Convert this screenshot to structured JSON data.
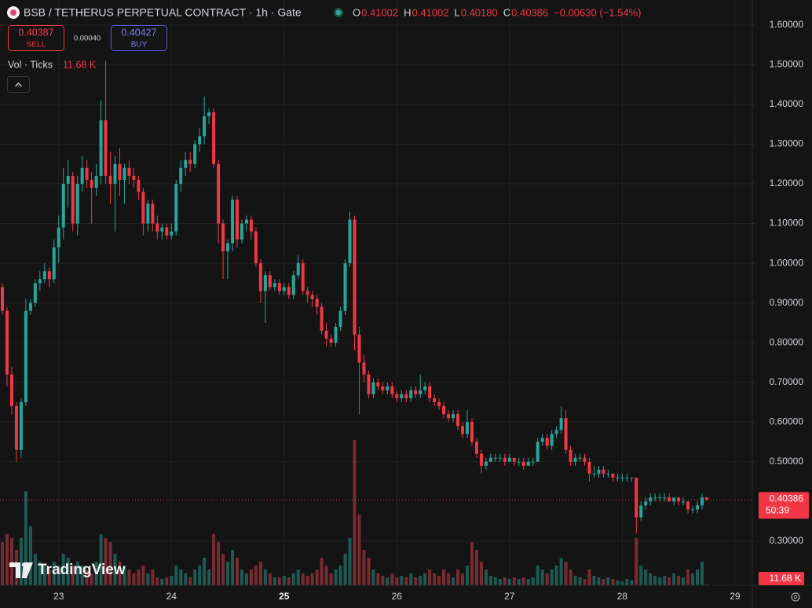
{
  "toolbar": {
    "symbol": "BSB / TETHERUS PERPETUAL CONTRACT · 1h · Gate",
    "readout": [
      {
        "label": "O",
        "value": "0.41002"
      },
      {
        "label": "H",
        "value": "0.41002"
      },
      {
        "label": "L",
        "value": "0.40180"
      },
      {
        "label": "C",
        "value": "0.40386"
      }
    ],
    "change": "−0.00630 (−1.54%)",
    "sell_price": "0.40387",
    "sell_label": "SELL",
    "spread": "0.00040",
    "buy_price": "0.40427",
    "buy_label": "BUY",
    "indicator": "Vol · Ticks",
    "volume_label": "11.68 K",
    "countdown": "50:39",
    "logo": "TradingView"
  },
  "chart_data": {
    "type": "candlestick",
    "title": "BSB / TETHERUS PERPETUAL CONTRACT · 1h · Gate",
    "up_color": "#26a69a",
    "down_color": "#f23645",
    "volume_up_color": "#1d5a54",
    "volume_down_color": "#7a2b31",
    "grid": true,
    "ylim": [
      0.189,
      1.663
    ],
    "yticks": [
      {
        "value": 1.6,
        "label": "1.60000"
      },
      {
        "value": 1.5,
        "label": "1.50000"
      },
      {
        "value": 1.4,
        "label": "1.40000"
      },
      {
        "value": 1.3,
        "label": "1.30000"
      },
      {
        "value": 1.2,
        "label": "1.20000"
      },
      {
        "value": 1.1,
        "label": "1.10000"
      },
      {
        "value": 1.0,
        "label": "1.00000"
      },
      {
        "value": 0.9,
        "label": "0.90000"
      },
      {
        "value": 0.8,
        "label": "0.80000"
      },
      {
        "value": 0.7,
        "label": "0.70000"
      },
      {
        "value": 0.6,
        "label": "0.60000"
      },
      {
        "value": 0.5,
        "label": "0.50000"
      },
      {
        "value": 0.3,
        "label": "0.30000"
      }
    ],
    "xlim": [
      -0.5,
      159.7
    ],
    "xticks": [
      {
        "value": 12,
        "label": "23"
      },
      {
        "value": 36,
        "label": "24"
      },
      {
        "value": 60,
        "label": "25"
      },
      {
        "value": 84,
        "label": "26"
      },
      {
        "value": 108,
        "label": "27"
      },
      {
        "value": 132,
        "label": "28"
      },
      {
        "value": 156,
        "label": "29"
      }
    ],
    "volume_ylim": [
      0,
      2000000
    ],
    "ohlc": [
      [
        0.94,
        0.95,
        0.87,
        0.88
      ],
      [
        0.88,
        0.89,
        0.69,
        0.72
      ],
      [
        0.72,
        0.74,
        0.62,
        0.64
      ],
      [
        0.64,
        0.65,
        0.5,
        0.53
      ],
      [
        0.53,
        0.66,
        0.51,
        0.65
      ],
      [
        0.65,
        0.91,
        0.64,
        0.88
      ],
      [
        0.88,
        0.91,
        0.87,
        0.9
      ],
      [
        0.9,
        0.96,
        0.89,
        0.95
      ],
      [
        0.95,
        0.98,
        0.93,
        0.96
      ],
      [
        0.96,
        1.0,
        0.95,
        0.98
      ],
      [
        0.98,
        0.99,
        0.94,
        0.96
      ],
      [
        0.96,
        1.06,
        0.95,
        1.04
      ],
      [
        1.04,
        1.12,
        1.0,
        1.09
      ],
      [
        1.09,
        1.24,
        1.06,
        1.2
      ],
      [
        1.2,
        1.26,
        1.14,
        1.22
      ],
      [
        1.22,
        1.23,
        1.08,
        1.1
      ],
      [
        1.1,
        1.22,
        1.07,
        1.2
      ],
      [
        1.2,
        1.27,
        1.18,
        1.24
      ],
      [
        1.24,
        1.26,
        1.19,
        1.21
      ],
      [
        1.21,
        1.23,
        1.1,
        1.19
      ],
      [
        1.19,
        1.25,
        1.17,
        1.22
      ],
      [
        1.22,
        1.41,
        1.2,
        1.36
      ],
      [
        1.36,
        1.51,
        1.2,
        1.22
      ],
      [
        1.22,
        1.28,
        1.15,
        1.2
      ],
      [
        1.2,
        1.27,
        1.08,
        1.25
      ],
      [
        1.25,
        1.29,
        1.17,
        1.21
      ],
      [
        1.21,
        1.25,
        1.15,
        1.24
      ],
      [
        1.24,
        1.26,
        1.2,
        1.22
      ],
      [
        1.22,
        1.24,
        1.19,
        1.21
      ],
      [
        1.21,
        1.22,
        1.16,
        1.18
      ],
      [
        1.18,
        1.19,
        1.07,
        1.1
      ],
      [
        1.1,
        1.16,
        1.08,
        1.15
      ],
      [
        1.15,
        1.16,
        1.08,
        1.1
      ],
      [
        1.1,
        1.12,
        1.06,
        1.08
      ],
      [
        1.08,
        1.1,
        1.06,
        1.09
      ],
      [
        1.09,
        1.1,
        1.06,
        1.07
      ],
      [
        1.07,
        1.1,
        1.06,
        1.08
      ],
      [
        1.08,
        1.21,
        1.07,
        1.2
      ],
      [
        1.2,
        1.26,
        1.18,
        1.24
      ],
      [
        1.24,
        1.28,
        1.22,
        1.26
      ],
      [
        1.26,
        1.28,
        1.23,
        1.25
      ],
      [
        1.25,
        1.31,
        1.24,
        1.3
      ],
      [
        1.3,
        1.34,
        1.28,
        1.32
      ],
      [
        1.32,
        1.42,
        1.3,
        1.37
      ],
      [
        1.37,
        1.39,
        1.35,
        1.38
      ],
      [
        1.38,
        1.39,
        1.24,
        1.25
      ],
      [
        1.25,
        1.26,
        1.05,
        1.1
      ],
      [
        1.1,
        1.11,
        0.96,
        1.03
      ],
      [
        1.03,
        1.06,
        0.96,
        1.05
      ],
      [
        1.05,
        1.17,
        1.03,
        1.16
      ],
      [
        1.16,
        1.17,
        1.04,
        1.06
      ],
      [
        1.06,
        1.11,
        1.05,
        1.1
      ],
      [
        1.1,
        1.12,
        1.08,
        1.11
      ],
      [
        1.11,
        1.12,
        1.06,
        1.08
      ],
      [
        1.08,
        1.09,
        0.99,
        1.0
      ],
      [
        1.0,
        1.01,
        0.9,
        0.93
      ],
      [
        0.93,
        0.98,
        0.85,
        0.97
      ],
      [
        0.97,
        0.98,
        0.93,
        0.94
      ],
      [
        0.94,
        0.96,
        0.93,
        0.95
      ],
      [
        0.95,
        0.96,
        0.92,
        0.93
      ],
      [
        0.93,
        0.95,
        0.92,
        0.94
      ],
      [
        0.94,
        0.95,
        0.91,
        0.92
      ],
      [
        0.92,
        0.98,
        0.91,
        0.97
      ],
      [
        0.97,
        1.02,
        0.96,
        1.0
      ],
      [
        1.0,
        1.01,
        0.92,
        0.93
      ],
      [
        0.93,
        0.94,
        0.9,
        0.92
      ],
      [
        0.92,
        0.93,
        0.89,
        0.91
      ],
      [
        0.91,
        0.92,
        0.87,
        0.89
      ],
      [
        0.89,
        0.9,
        0.82,
        0.83
      ],
      [
        0.83,
        0.85,
        0.79,
        0.81
      ],
      [
        0.81,
        0.82,
        0.79,
        0.8
      ],
      [
        0.8,
        0.85,
        0.79,
        0.84
      ],
      [
        0.84,
        0.89,
        0.83,
        0.88
      ],
      [
        0.88,
        1.01,
        0.87,
        1.0
      ],
      [
        1.0,
        1.13,
        0.99,
        1.11
      ],
      [
        1.11,
        1.12,
        0.78,
        0.82
      ],
      [
        0.82,
        0.84,
        0.62,
        0.75
      ],
      [
        0.75,
        0.77,
        0.7,
        0.72
      ],
      [
        0.72,
        0.73,
        0.66,
        0.67
      ],
      [
        0.67,
        0.71,
        0.66,
        0.7
      ],
      [
        0.7,
        0.71,
        0.68,
        0.69
      ],
      [
        0.69,
        0.7,
        0.67,
        0.68
      ],
      [
        0.68,
        0.7,
        0.67,
        0.69
      ],
      [
        0.69,
        0.7,
        0.66,
        0.67
      ],
      [
        0.67,
        0.68,
        0.65,
        0.66
      ],
      [
        0.66,
        0.68,
        0.65,
        0.67
      ],
      [
        0.67,
        0.68,
        0.65,
        0.66
      ],
      [
        0.66,
        0.69,
        0.65,
        0.68
      ],
      [
        0.68,
        0.69,
        0.66,
        0.67
      ],
      [
        0.67,
        0.72,
        0.66,
        0.68
      ],
      [
        0.68,
        0.7,
        0.67,
        0.69
      ],
      [
        0.69,
        0.7,
        0.65,
        0.66
      ],
      [
        0.66,
        0.67,
        0.64,
        0.65
      ],
      [
        0.65,
        0.66,
        0.63,
        0.64
      ],
      [
        0.64,
        0.65,
        0.61,
        0.62
      ],
      [
        0.62,
        0.63,
        0.6,
        0.61
      ],
      [
        0.61,
        0.63,
        0.6,
        0.62
      ],
      [
        0.62,
        0.63,
        0.58,
        0.59
      ],
      [
        0.59,
        0.6,
        0.56,
        0.57
      ],
      [
        0.57,
        0.63,
        0.56,
        0.6
      ],
      [
        0.6,
        0.61,
        0.54,
        0.55
      ],
      [
        0.55,
        0.56,
        0.51,
        0.52
      ],
      [
        0.52,
        0.53,
        0.47,
        0.49
      ],
      [
        0.49,
        0.51,
        0.48,
        0.5
      ],
      [
        0.5,
        0.52,
        0.5,
        0.51
      ],
      [
        0.51,
        0.52,
        0.5,
        0.51
      ],
      [
        0.51,
        0.52,
        0.5,
        0.51
      ],
      [
        0.51,
        0.52,
        0.49,
        0.5
      ],
      [
        0.5,
        0.52,
        0.5,
        0.51
      ],
      [
        0.51,
        0.51,
        0.49,
        0.5
      ],
      [
        0.5,
        0.51,
        0.49,
        0.5
      ],
      [
        0.5,
        0.51,
        0.48,
        0.49
      ],
      [
        0.49,
        0.51,
        0.49,
        0.5
      ],
      [
        0.5,
        0.51,
        0.49,
        0.5
      ],
      [
        0.5,
        0.56,
        0.5,
        0.55
      ],
      [
        0.55,
        0.57,
        0.54,
        0.56
      ],
      [
        0.56,
        0.57,
        0.53,
        0.54
      ],
      [
        0.54,
        0.58,
        0.53,
        0.57
      ],
      [
        0.57,
        0.59,
        0.56,
        0.58
      ],
      [
        0.58,
        0.64,
        0.57,
        0.61
      ],
      [
        0.61,
        0.63,
        0.52,
        0.53
      ],
      [
        0.53,
        0.54,
        0.49,
        0.5
      ],
      [
        0.5,
        0.52,
        0.49,
        0.51
      ],
      [
        0.51,
        0.52,
        0.5,
        0.51
      ],
      [
        0.51,
        0.52,
        0.49,
        0.5
      ],
      [
        0.5,
        0.51,
        0.45,
        0.47
      ],
      [
        0.47,
        0.49,
        0.46,
        0.47
      ],
      [
        0.47,
        0.49,
        0.46,
        0.48
      ],
      [
        0.48,
        0.49,
        0.46,
        0.47
      ],
      [
        0.47,
        0.48,
        0.46,
        0.47
      ],
      [
        0.47,
        0.47,
        0.45,
        0.46
      ],
      [
        0.46,
        0.47,
        0.45,
        0.46
      ],
      [
        0.46,
        0.47,
        0.45,
        0.46
      ],
      [
        0.46,
        0.47,
        0.45,
        0.46
      ],
      [
        0.46,
        0.46,
        0.45,
        0.46
      ],
      [
        0.46,
        0.46,
        0.32,
        0.36
      ],
      [
        0.36,
        0.4,
        0.35,
        0.39
      ],
      [
        0.39,
        0.41,
        0.38,
        0.4
      ],
      [
        0.4,
        0.42,
        0.39,
        0.41
      ],
      [
        0.41,
        0.42,
        0.4,
        0.41
      ],
      [
        0.41,
        0.42,
        0.4,
        0.41
      ],
      [
        0.41,
        0.42,
        0.4,
        0.41
      ],
      [
        0.41,
        0.42,
        0.4,
        0.4
      ],
      [
        0.4,
        0.41,
        0.39,
        0.41
      ],
      [
        0.41,
        0.41,
        0.39,
        0.4
      ],
      [
        0.4,
        0.41,
        0.39,
        0.4
      ],
      [
        0.4,
        0.4,
        0.37,
        0.38
      ],
      [
        0.38,
        0.39,
        0.37,
        0.38
      ],
      [
        0.38,
        0.4,
        0.37,
        0.39
      ],
      [
        0.39,
        0.42,
        0.38,
        0.41
      ],
      [
        0.41002,
        0.41002,
        0.4018,
        0.40386
      ]
    ],
    "volume": [
      550000,
      650000,
      600000,
      450000,
      600000,
      1200000,
      750000,
      400000,
      300000,
      250000,
      200000,
      300000,
      250000,
      400000,
      350000,
      250000,
      300000,
      250000,
      200000,
      150000,
      300000,
      650000,
      600000,
      550000,
      400000,
      300000,
      250000,
      200000,
      150000,
      200000,
      250000,
      150000,
      200000,
      100000,
      80000,
      100000,
      120000,
      250000,
      200000,
      150000,
      100000,
      200000,
      250000,
      350000,
      200000,
      650000,
      550000,
      400000,
      300000,
      450000,
      350000,
      200000,
      150000,
      200000,
      250000,
      300000,
      200000,
      150000,
      100000,
      100000,
      120000,
      100000,
      150000,
      200000,
      150000,
      120000,
      150000,
      200000,
      350000,
      250000,
      150000,
      200000,
      250000,
      400000,
      600000,
      1850000,
      900000,
      450000,
      350000,
      200000,
      150000,
      120000,
      100000,
      150000,
      100000,
      120000,
      100000,
      150000,
      100000,
      120000,
      150000,
      200000,
      150000,
      120000,
      200000,
      150000,
      100000,
      200000,
      150000,
      250000,
      550000,
      450000,
      300000,
      200000,
      120000,
      100000,
      80000,
      100000,
      80000,
      100000,
      80000,
      100000,
      80000,
      100000,
      250000,
      200000,
      150000,
      200000,
      250000,
      350000,
      300000,
      200000,
      120000,
      100000,
      80000,
      200000,
      120000,
      100000,
      80000,
      100000,
      80000,
      60000,
      50000,
      80000,
      60000,
      600000,
      250000,
      200000,
      150000,
      120000,
      100000,
      120000,
      100000,
      150000,
      120000,
      100000,
      200000,
      150000,
      200000,
      300000,
      11680
    ]
  }
}
